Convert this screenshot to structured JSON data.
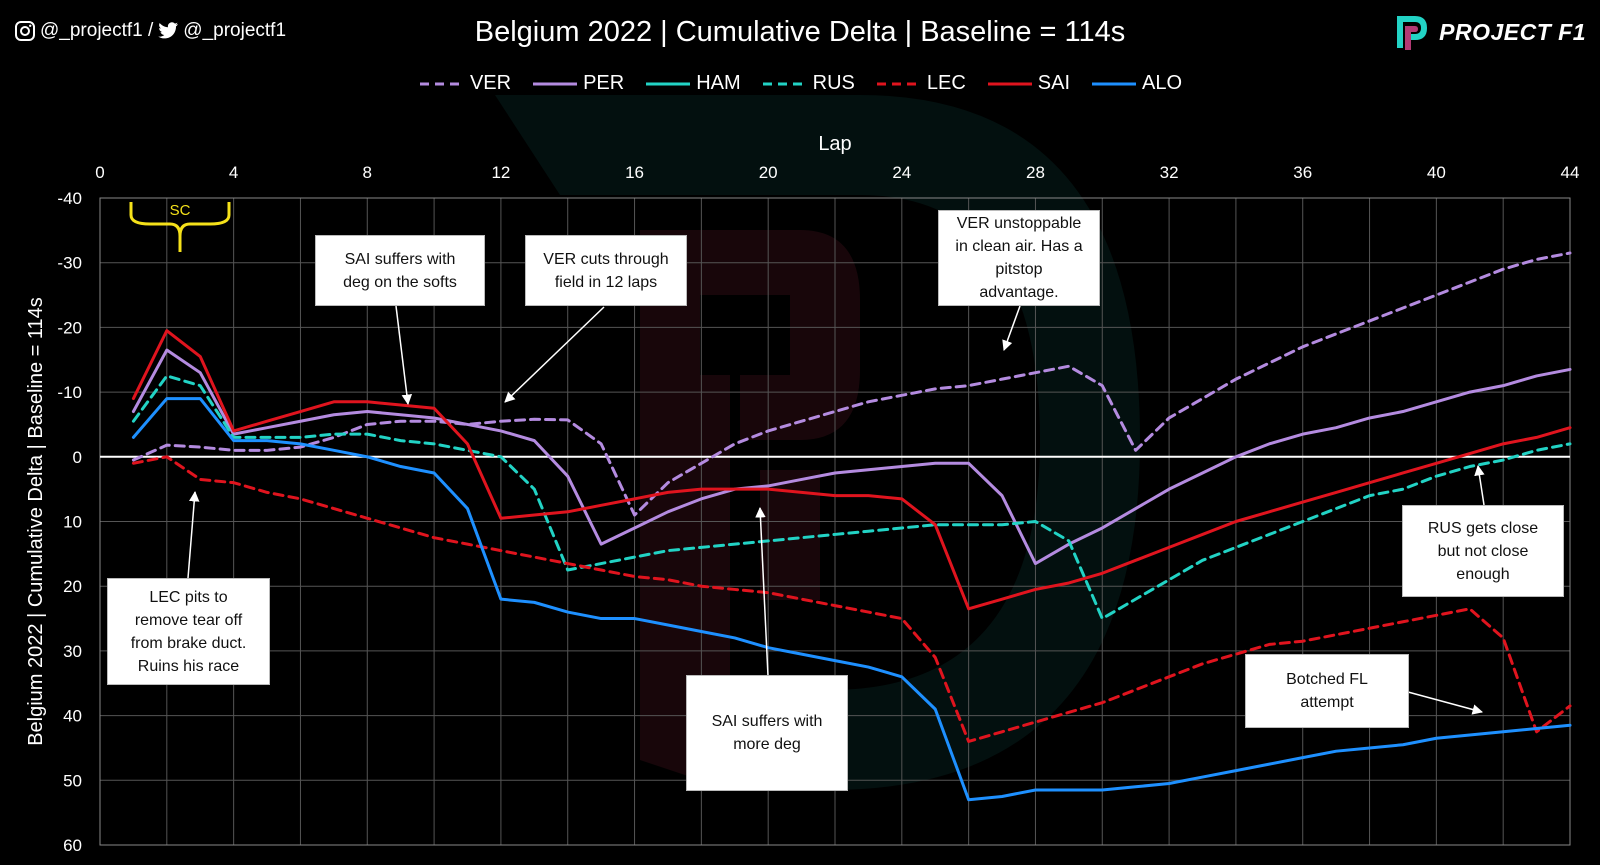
{
  "header": {
    "social_handle_instagram": "@_projectf1 /",
    "social_handle_twitter": "@_projectf1",
    "logo_text": "PROJECT F1"
  },
  "colors": {
    "VER": "#b48be0",
    "PER": "#b48be0",
    "HAM": "#22d3c5",
    "RUS": "#22d3c5",
    "LEC": "#e0141e",
    "SAI": "#e0141e",
    "ALO": "#1e90ff",
    "sc": "#f5e11a",
    "zero_line": "#ffffff",
    "grid": "#555555"
  },
  "chart_data": {
    "type": "line",
    "title": "Belgium 2022 | Cumulative Delta | Baseline = 114s",
    "xlabel": "Lap",
    "ylabel": "Belgium 2022 | Cumulative Delta | Baseline = 114s",
    "xlim": [
      0,
      44
    ],
    "ylim": [
      -40,
      60
    ],
    "y_reversed": true,
    "x_ticks": [
      0,
      4,
      8,
      12,
      16,
      20,
      24,
      28,
      32,
      36,
      40,
      44
    ],
    "y_ticks": [
      -40,
      -30,
      -20,
      -10,
      0,
      10,
      20,
      30,
      40,
      50,
      60
    ],
    "grid": true,
    "legend_position": "top-center",
    "series": [
      {
        "name": "VER",
        "dashed": true,
        "x": [
          1,
          2,
          3,
          4,
          5,
          6,
          7,
          8,
          9,
          10,
          11,
          12,
          13,
          14,
          15,
          16,
          17,
          18,
          19,
          20,
          21,
          22,
          23,
          24,
          25,
          26,
          27,
          28,
          29,
          30,
          31,
          32,
          33,
          34,
          35,
          36,
          37,
          38,
          39,
          40,
          41,
          42,
          43,
          44
        ],
        "y": [
          0.5,
          -1.8,
          -1.5,
          -1,
          -1,
          -1.5,
          -3,
          -5,
          -5.5,
          -5.5,
          -5,
          -5.5,
          -5.8,
          -5.7,
          -2,
          9,
          4,
          1,
          -2,
          -4,
          -5.5,
          -7,
          -8.5,
          -9.5,
          -10.5,
          -11,
          -12,
          -13,
          -14,
          -11,
          -1,
          -6,
          -9,
          -12,
          -14.5,
          -17,
          -19,
          -21,
          -23,
          -25,
          -27,
          -29,
          -30.5,
          -31.5
        ]
      },
      {
        "name": "PER",
        "dashed": false,
        "x": [
          1,
          2,
          3,
          4,
          5,
          6,
          7,
          8,
          9,
          10,
          11,
          12,
          13,
          14,
          15,
          16,
          17,
          18,
          19,
          20,
          21,
          22,
          23,
          24,
          25,
          26,
          27,
          28,
          29,
          30,
          31,
          32,
          33,
          34,
          35,
          36,
          37,
          38,
          39,
          40,
          41,
          42,
          43,
          44
        ],
        "y": [
          -7,
          -16.5,
          -13,
          -3.5,
          -4.5,
          -5.5,
          -6.5,
          -7,
          -6.5,
          -6,
          -5,
          -4,
          -2.5,
          3,
          13.5,
          11,
          8.5,
          6.5,
          5,
          4.5,
          3.5,
          2.5,
          2,
          1.5,
          1,
          1,
          6,
          16.5,
          13.5,
          11,
          8,
          5,
          2.5,
          0,
          -2,
          -3.5,
          -4.5,
          -6,
          -7,
          -8.5,
          -10,
          -11,
          -12.5,
          -13.5
        ]
      },
      {
        "name": "HAM",
        "dashed": false,
        "x": [
          1
        ],
        "y": [
          null
        ]
      },
      {
        "name": "RUS",
        "dashed": true,
        "x": [
          1,
          2,
          3,
          4,
          5,
          6,
          7,
          8,
          9,
          10,
          11,
          12,
          13,
          14,
          15,
          16,
          17,
          18,
          19,
          20,
          21,
          22,
          23,
          24,
          25,
          26,
          27,
          28,
          29,
          30,
          31,
          32,
          33,
          34,
          35,
          36,
          37,
          38,
          39,
          40,
          41,
          42,
          43,
          44
        ],
        "y": [
          -5.5,
          -12.5,
          -11,
          -3,
          -3,
          -3,
          -3.5,
          -3.5,
          -2.5,
          -2,
          -1,
          0,
          5,
          17.5,
          16.5,
          15.5,
          14.5,
          14,
          13.5,
          13,
          12.5,
          12,
          11.5,
          11,
          10.5,
          10.5,
          10.5,
          10,
          13,
          25,
          22,
          19,
          16,
          14,
          12,
          10,
          8,
          6,
          5,
          3,
          1.5,
          0.5,
          -1,
          -2
        ]
      },
      {
        "name": "LEC",
        "dashed": true,
        "x": [
          1,
          2,
          3,
          4,
          5,
          6,
          7,
          8,
          9,
          10,
          11,
          12,
          13,
          14,
          15,
          16,
          17,
          18,
          19,
          20,
          21,
          22,
          23,
          24,
          25,
          26,
          27,
          28,
          29,
          30,
          31,
          32,
          33,
          34,
          35,
          36,
          37,
          38,
          39,
          40,
          41,
          42,
          43,
          44
        ],
        "y": [
          1,
          0,
          3.5,
          4,
          5.5,
          6.5,
          8,
          9.5,
          11,
          12.5,
          13.5,
          14.5,
          15.5,
          16.5,
          17.5,
          18.5,
          19,
          20,
          20.5,
          21,
          22,
          23,
          24,
          25,
          31,
          44,
          42.5,
          41,
          39.5,
          38,
          36,
          34,
          32,
          30.5,
          29,
          28.5,
          27.5,
          26.5,
          25.5,
          24.5,
          23.5,
          28,
          42.5,
          38.5
        ]
      },
      {
        "name": "SAI",
        "dashed": false,
        "x": [
          1,
          2,
          3,
          4,
          5,
          6,
          7,
          8,
          9,
          10,
          11,
          12,
          13,
          14,
          15,
          16,
          17,
          18,
          19,
          20,
          21,
          22,
          23,
          24,
          25,
          26,
          27,
          28,
          29,
          30,
          31,
          32,
          33,
          34,
          35,
          36,
          37,
          38,
          39,
          40,
          41,
          42,
          43,
          44
        ],
        "y": [
          -9,
          -19.5,
          -15.5,
          -4,
          -5.5,
          -7,
          -8.5,
          -8.5,
          -8,
          -7.5,
          -2,
          9.5,
          9,
          8.5,
          7.5,
          6.5,
          5.5,
          5,
          5,
          5,
          5.5,
          6,
          6,
          6.5,
          10.5,
          23.5,
          22,
          20.5,
          19.5,
          18,
          16,
          14,
          12,
          10,
          8.5,
          7,
          5.5,
          4,
          2.5,
          1,
          -0.5,
          -2,
          -3,
          -4.5
        ]
      },
      {
        "name": "ALO",
        "dashed": false,
        "x": [
          1,
          2,
          3,
          4,
          5,
          6,
          7,
          8,
          9,
          10,
          11,
          12,
          13,
          14,
          15,
          16,
          17,
          18,
          19,
          20,
          21,
          22,
          23,
          24,
          25,
          26,
          27,
          28,
          29,
          30,
          31,
          32,
          33,
          34,
          35,
          36,
          37,
          38,
          39,
          40,
          41,
          42,
          43,
          44
        ],
        "y": [
          -3,
          -9,
          -9,
          -2.5,
          -2.5,
          -2,
          -1,
          0,
          1.5,
          2.5,
          8,
          22,
          22.5,
          24,
          25,
          25,
          26,
          27,
          28,
          29.5,
          30.5,
          31.5,
          32.5,
          34,
          39,
          53,
          52.5,
          51.5,
          51.5,
          51.5,
          51,
          50.5,
          49.5,
          48.5,
          47.5,
          46.5,
          45.5,
          45,
          44.5,
          43.5,
          43,
          42.5,
          42,
          41.5
        ]
      }
    ],
    "annotations": [
      {
        "label": "SC"
      },
      {
        "text": "SAI suffers with\ndeg on the softs"
      },
      {
        "text": "VER cuts through\nfield in 12 laps"
      },
      {
        "text": "VER unstoppable\nin clean air. Has a\npitstop\nadvantage."
      },
      {
        "text": "LEC pits to\nremove tear off\nfrom brake duct.\nRuins his race"
      },
      {
        "text": "SAI suffers with\nmore deg"
      },
      {
        "text": "RUS gets close\nbut not close\nenough"
      },
      {
        "text": "Botched FL\nattempt"
      }
    ]
  }
}
